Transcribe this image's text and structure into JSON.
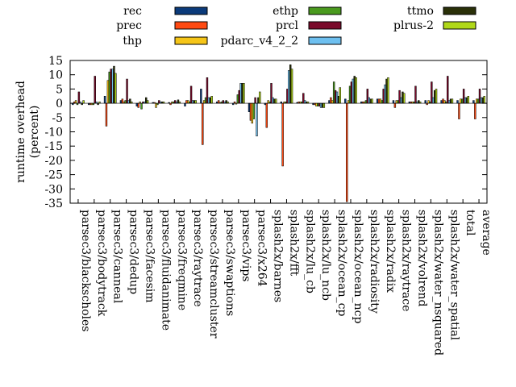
{
  "chart_data": {
    "type": "bar",
    "ylabel": "runtime overhead\n(percent)",
    "ylim": [
      -35,
      15
    ],
    "yticks": [
      15,
      10,
      5,
      0,
      -5,
      -10,
      -15,
      -20,
      -25,
      -30,
      -35
    ],
    "grid": false,
    "legend_placement": "top",
    "categories": [
      "parsec3/blackscholes",
      "parsec3/bodytrack",
      "parsec3/canneal",
      "parsec3/dedup",
      "parsec3/facesim",
      "parsec3/fluidanimate",
      "parsec3/freqmine",
      "parsec3/raytrace",
      "parsec3/streamcluster",
      "parsec3/swaptions",
      "parsec3/vips",
      "parsec3/x264",
      "splash2x/barnes",
      "splash2x/fft",
      "splash2x/lu_cb",
      "splash2x/lu_ncb",
      "splash2x/ocean_cp",
      "splash2x/ocean_ncp",
      "splash2x/radiosity",
      "splash2x/radix",
      "splash2x/raytrace",
      "splash2x/volrend",
      "splash2x/water_nsquared",
      "splash2x/water_spatial",
      "total",
      "average"
    ],
    "series": [
      {
        "name": "rec",
        "color": "#0b3a7a",
        "values": [
          -0.5,
          -0.5,
          2.5,
          1,
          -1,
          0.3,
          0.3,
          -1,
          5,
          0.5,
          -0.5,
          -3,
          -0.5,
          0.5,
          0.3,
          -0.5,
          1,
          1.5,
          0.5,
          1.5,
          1,
          0.5,
          1,
          1,
          1,
          1
        ]
      },
      {
        "name": "prec",
        "color": "#ff4a12",
        "values": [
          0.5,
          -0.5,
          -8,
          1.5,
          -1.5,
          0.3,
          -0.5,
          1,
          -14.5,
          1,
          0.5,
          -6,
          -8.5,
          -22,
          0.5,
          -0.5,
          2,
          -34.5,
          0.5,
          1.5,
          -1.5,
          0.5,
          -0.5,
          1.5,
          -5.5,
          -5.5
        ]
      },
      {
        "name": "thp",
        "color": "#f5c518",
        "values": [
          1,
          -0.5,
          8,
          0.5,
          0.5,
          -1.5,
          0.5,
          1,
          1,
          0.3,
          -0.3,
          -7,
          1,
          0.5,
          0.5,
          -1,
          1,
          1,
          0.5,
          1.5,
          1,
          0.5,
          1,
          1,
          1.5,
          1.5
        ]
      },
      {
        "name": "ethp",
        "color": "#4a9a1e",
        "values": [
          -0.5,
          -0.5,
          11,
          1,
          -2,
          -0.5,
          0.5,
          0.5,
          2,
          0.5,
          3,
          -5.5,
          0.5,
          0.5,
          0.5,
          -1,
          7.5,
          6,
          1,
          1,
          1,
          0.5,
          0.5,
          0.5,
          1.5,
          1.5
        ]
      },
      {
        "name": "prcl",
        "color": "#7a0a2a",
        "values": [
          4,
          9.5,
          12,
          8.5,
          0.5,
          1,
          1,
          6,
          9,
          1,
          4.5,
          2,
          7,
          5,
          3.5,
          -1,
          4.5,
          7.5,
          5,
          5,
          4.5,
          6,
          7.5,
          9.5,
          5,
          5
        ]
      },
      {
        "name": "pdarc_v4_2_2",
        "color": "#6ec0f0",
        "values": [
          0.5,
          0.5,
          12,
          1,
          0.5,
          0.5,
          0.5,
          1,
          2,
          0.5,
          7,
          -11.5,
          2,
          11.5,
          1,
          -1.5,
          4,
          8.5,
          2,
          6.5,
          2,
          0.5,
          2,
          1,
          2,
          2
        ]
      },
      {
        "name": "ttmo",
        "color": "#2a3008",
        "values": [
          -0.5,
          -0.5,
          13,
          1.5,
          2,
          0.5,
          1.2,
          1,
          2,
          1,
          7,
          2,
          1.5,
          13.5,
          0.5,
          -1.5,
          2.5,
          9.5,
          1.5,
          8.5,
          4,
          1,
          4.5,
          1.5,
          2,
          2
        ]
      },
      {
        "name": "plrus-2",
        "color": "#b0d818",
        "values": [
          1,
          0.5,
          10.5,
          0.5,
          1,
          0.5,
          0.5,
          1,
          2.5,
          0.5,
          7,
          4,
          1.5,
          12,
          0.5,
          -1.5,
          5.5,
          9,
          1.5,
          9,
          3.5,
          0.5,
          5,
          1.5,
          2.5,
          2.5
        ]
      }
    ]
  }
}
